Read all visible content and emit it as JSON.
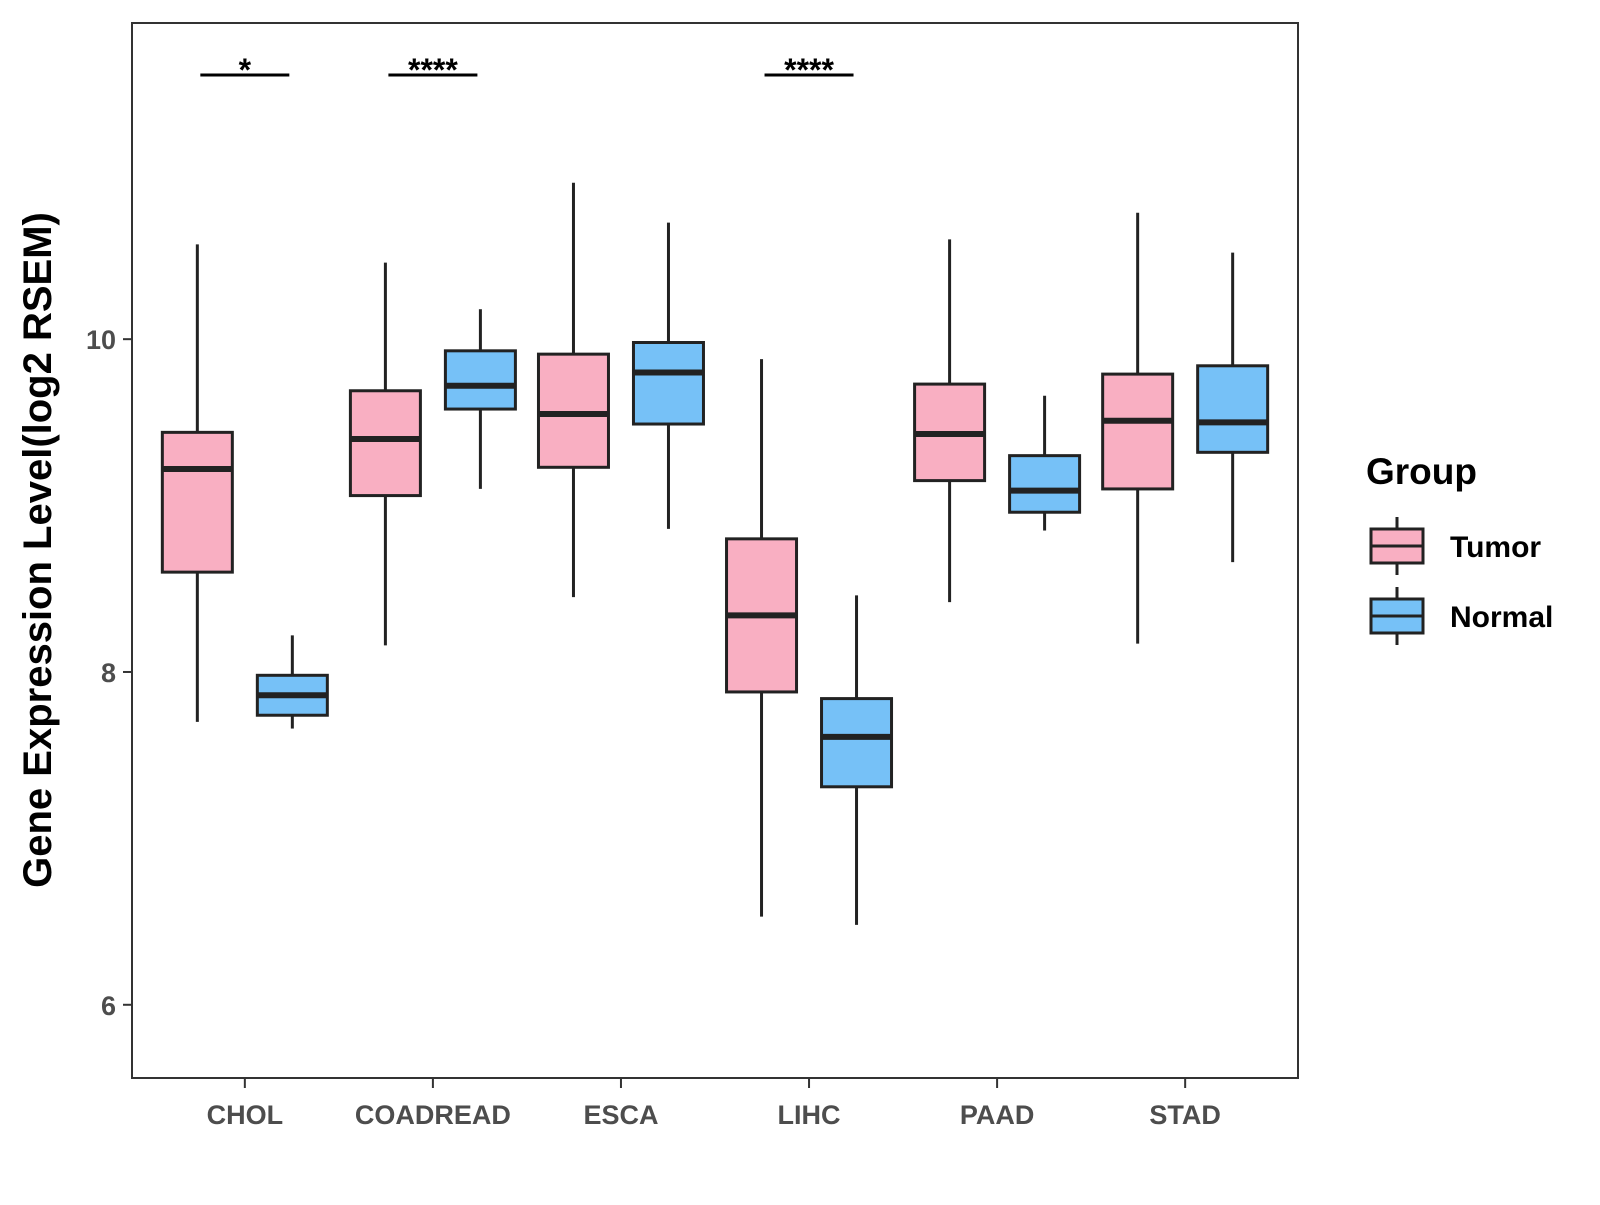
{
  "chart_data": {
    "type": "box",
    "ylabel": "Gene Expression Level(log2 RSEM)",
    "xlabel": "",
    "ylim": [
      5.56,
      11.9
    ],
    "yticks": [
      6,
      8,
      10
    ],
    "grid": false,
    "categories": [
      "CHOL",
      "COADREAD",
      "ESCA",
      "LIHC",
      "PAAD",
      "STAD"
    ],
    "series": [
      {
        "name": "Tumor",
        "color": "#F9AFC2",
        "boxes": [
          {
            "category": "CHOL",
            "whisker_low": 7.7,
            "q1": 8.6,
            "median": 9.22,
            "q3": 9.44,
            "whisker_high": 10.57
          },
          {
            "category": "COADREAD",
            "whisker_low": 8.16,
            "q1": 9.06,
            "median": 9.4,
            "q3": 9.69,
            "whisker_high": 10.46
          },
          {
            "category": "ESCA",
            "whisker_low": 8.45,
            "q1": 9.23,
            "median": 9.55,
            "q3": 9.91,
            "whisker_high": 10.94
          },
          {
            "category": "LIHC",
            "whisker_low": 6.53,
            "q1": 7.88,
            "median": 8.34,
            "q3": 8.8,
            "whisker_high": 9.88
          },
          {
            "category": "PAAD",
            "whisker_low": 8.42,
            "q1": 9.15,
            "median": 9.43,
            "q3": 9.73,
            "whisker_high": 10.6
          },
          {
            "category": "STAD",
            "whisker_low": 8.17,
            "q1": 9.1,
            "median": 9.51,
            "q3": 9.79,
            "whisker_high": 10.76
          }
        ]
      },
      {
        "name": "Normal",
        "color": "#76C1F7",
        "boxes": [
          {
            "category": "CHOL",
            "whisker_low": 7.66,
            "q1": 7.74,
            "median": 7.86,
            "q3": 7.98,
            "whisker_high": 8.22
          },
          {
            "category": "COADREAD",
            "whisker_low": 9.1,
            "q1": 9.58,
            "median": 9.72,
            "q3": 9.93,
            "whisker_high": 10.18
          },
          {
            "category": "ESCA",
            "whisker_low": 8.86,
            "q1": 9.49,
            "median": 9.8,
            "q3": 9.98,
            "whisker_high": 10.7
          },
          {
            "category": "LIHC",
            "whisker_low": 6.48,
            "q1": 7.31,
            "median": 7.61,
            "q3": 7.84,
            "whisker_high": 8.46
          },
          {
            "category": "PAAD",
            "whisker_low": 8.85,
            "q1": 8.96,
            "median": 9.09,
            "q3": 9.3,
            "whisker_high": 9.66
          },
          {
            "category": "STAD",
            "whisker_low": 8.66,
            "q1": 9.32,
            "median": 9.5,
            "q3": 9.84,
            "whisker_high": 10.52
          }
        ]
      }
    ],
    "significance": [
      {
        "category": "CHOL",
        "label": "*"
      },
      {
        "category": "COADREAD",
        "label": "****"
      },
      {
        "category": "LIHC",
        "label": "****"
      }
    ],
    "legend": {
      "title": "Group",
      "position": "right",
      "items": [
        "Tumor",
        "Normal"
      ]
    }
  }
}
